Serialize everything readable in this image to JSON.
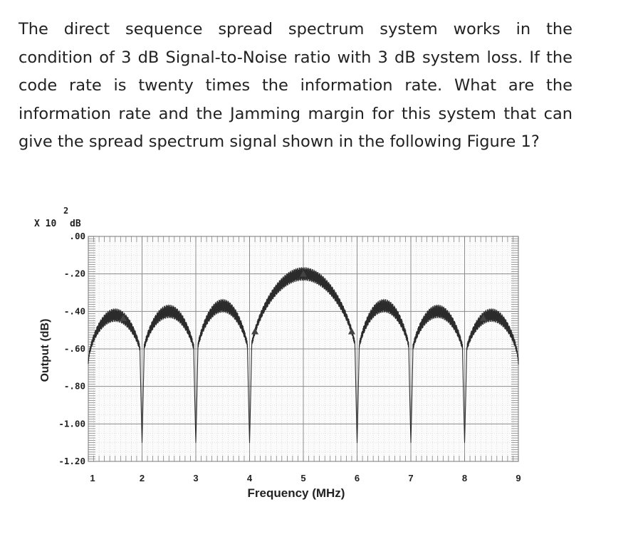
{
  "question": {
    "lines": [
      "The direct sequence spread spectrum system works in the",
      "condition of 3 dB Signal-to-Noise ratio with 3 dB system loss. If the",
      "code rate is twenty times the information rate. What are the",
      "information rate and the Jamming margin for this system that can",
      "give the spread spectrum signal shown in the following Figure 1?"
    ]
  },
  "chart_data": {
    "type": "line",
    "xlabel": "Frequency (MHz)",
    "ylabel": "Output (dB)",
    "y_scale_note": {
      "multiplier": "X 10",
      "exponent": "2",
      "unit": "dB"
    },
    "x_ticks": [
      "1",
      "2",
      "3",
      "4",
      "5",
      "6",
      "7",
      "8",
      "9"
    ],
    "y_ticks": [
      ".00",
      "-.20",
      "-.40",
      "-.60",
      "-.80",
      "-1.00",
      "-1.20"
    ],
    "xlim": [
      1,
      9
    ],
    "ylim": [
      -1.2,
      0.0
    ],
    "grid": true,
    "main_lobe_center_mhz": 5,
    "null_frequencies_mhz": [
      2,
      3,
      4,
      6,
      7,
      8
    ],
    "lobes": [
      {
        "from_mhz": 1.0,
        "to_mhz": 2.0,
        "peak": -0.42
      },
      {
        "from_mhz": 2.0,
        "to_mhz": 3.0,
        "peak": -0.4
      },
      {
        "from_mhz": 3.0,
        "to_mhz": 4.0,
        "peak": -0.37
      },
      {
        "from_mhz": 4.0,
        "to_mhz": 6.0,
        "peak": -0.2
      },
      {
        "from_mhz": 6.0,
        "to_mhz": 7.0,
        "peak": -0.37
      },
      {
        "from_mhz": 7.0,
        "to_mhz": 8.0,
        "peak": -0.4
      },
      {
        "from_mhz": 8.0,
        "to_mhz": 9.0,
        "peak": -0.42
      }
    ],
    "null_depth": -1.1
  }
}
